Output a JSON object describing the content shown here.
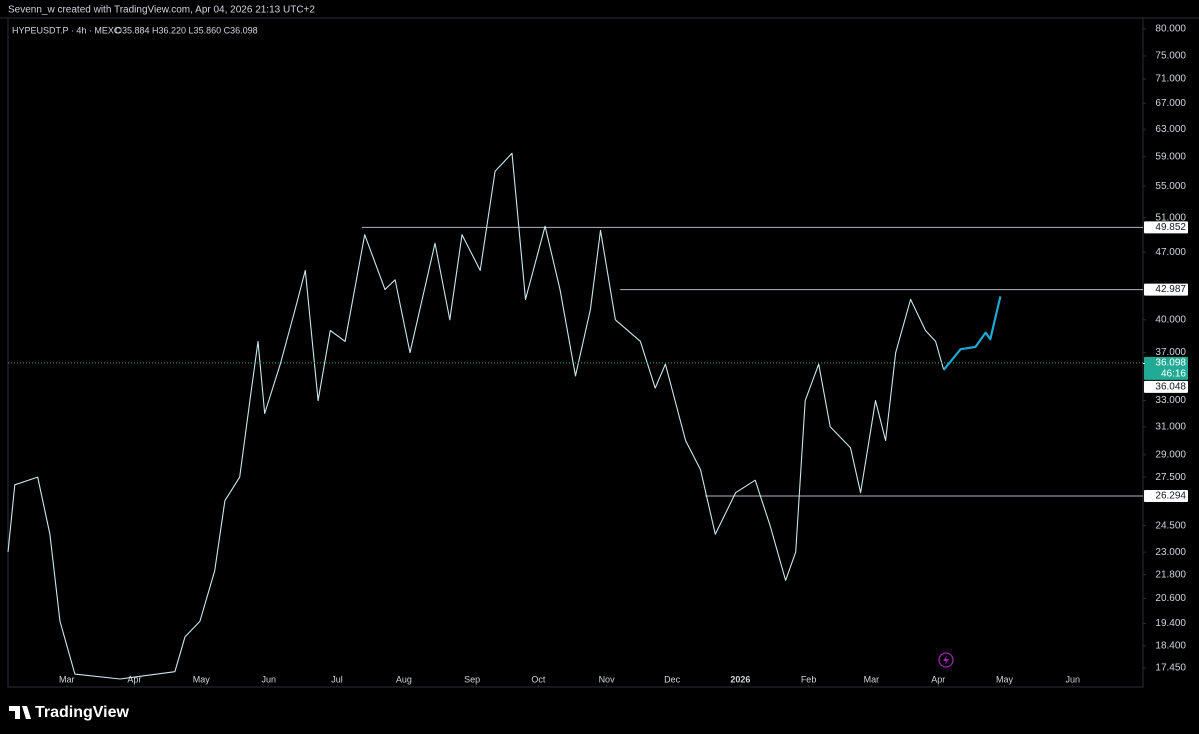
{
  "header": "Sevenn_w created with TradingView.com, Apr 04, 2026 21:13 UTC+2",
  "footer": "TradingView",
  "chart_data": {
    "type": "line",
    "title": "HYPEUSDT.P · 4h · MEXC",
    "subtitle": "O35.884 H36.220 L35.860 C36.098",
    "log_scale": true,
    "grid": false,
    "xlim": [
      -0.87,
      15.93
    ],
    "xticks": [
      {
        "value": 0,
        "label": "Mar"
      },
      {
        "value": 1,
        "label": "Apr"
      },
      {
        "value": 1.99,
        "label": "May"
      },
      {
        "value": 2.99,
        "label": "Jun"
      },
      {
        "value": 4,
        "label": "Jul"
      },
      {
        "value": 4.99,
        "label": "Aug"
      },
      {
        "value": 6,
        "label": "Sep"
      },
      {
        "value": 6.98,
        "label": "Oct"
      },
      {
        "value": 7.99,
        "label": "Nov"
      },
      {
        "value": 8.96,
        "label": "Dec"
      },
      {
        "value": 9.97,
        "label": "2026"
      },
      {
        "value": 10.98,
        "label": "Feb"
      },
      {
        "value": 11.91,
        "label": "Mar"
      },
      {
        "value": 12.9,
        "label": "Apr"
      },
      {
        "value": 13.88,
        "label": "May"
      },
      {
        "value": 14.89,
        "label": "Jun"
      }
    ],
    "ylim": [
      16.68,
      82.1
    ],
    "yticks": [
      {
        "value": 80,
        "label": "80.000"
      },
      {
        "value": 75,
        "label": "75.000"
      },
      {
        "value": 71,
        "label": "71.000"
      },
      {
        "value": 67,
        "label": "67.000"
      },
      {
        "value": 63,
        "label": "63.000"
      },
      {
        "value": 59,
        "label": "59.000"
      },
      {
        "value": 55,
        "label": "55.000"
      },
      {
        "value": 51,
        "label": "51.000"
      },
      {
        "value": 47,
        "label": "47.000"
      },
      {
        "value": 40,
        "label": "40.000"
      },
      {
        "value": 37,
        "label": "37.000"
      },
      {
        "value": 33,
        "label": "33.000"
      },
      {
        "value": 31,
        "label": "31.000"
      },
      {
        "value": 29,
        "label": "29.000"
      },
      {
        "value": 27.5,
        "label": "27.500"
      },
      {
        "value": 24.5,
        "label": "24.500"
      },
      {
        "value": 23,
        "label": "23.000"
      },
      {
        "value": 21.8,
        "label": "21.800"
      },
      {
        "value": 20.6,
        "label": "20.600"
      },
      {
        "value": 19.4,
        "label": "19.400"
      },
      {
        "value": 18.4,
        "label": "18.400"
      },
      {
        "value": 17.45,
        "label": "17.450"
      }
    ],
    "series": [
      {
        "color": "#c9e6ee",
        "x": [
          -0.87,
          -0.77,
          -0.43,
          -0.25,
          -0.1,
          0.12,
          0.79,
          1.6,
          1.75,
          1.97,
          2.19,
          2.34,
          2.56,
          2.71,
          2.83,
          2.93,
          3.16,
          3.38,
          3.53,
          3.72,
          3.9,
          4.12,
          4.41,
          4.71,
          4.86,
          5.08,
          5.45,
          5.67,
          5.85,
          6.12,
          6.34,
          6.59,
          6.79,
          7.08,
          7.3,
          7.53,
          7.75,
          7.9,
          8.12,
          8.49,
          8.71,
          8.86,
          9.16,
          9.38,
          9.6,
          9.9,
          10.19,
          10.41,
          10.64,
          10.79,
          10.93,
          11.13,
          11.3,
          11.6,
          11.75,
          11.97,
          12.12,
          12.27,
          12.49,
          12.71,
          12.86,
          12.98
        ],
        "values": [
          23,
          27,
          27.5,
          24,
          19.5,
          17.2,
          17.0,
          17.3,
          18.8,
          19.5,
          22,
          26,
          27.5,
          33,
          38,
          32,
          36,
          41,
          45,
          33,
          39,
          38,
          49,
          43,
          44,
          37,
          48,
          40,
          49,
          45,
          57,
          59.5,
          42,
          50,
          43,
          35,
          41,
          49.5,
          40,
          38,
          34,
          36,
          30,
          28,
          24,
          26.5,
          27.3,
          24.5,
          21.5,
          23,
          33,
          36,
          31,
          29.5,
          26.5,
          33,
          30,
          37,
          42,
          39,
          38,
          35.5
        ]
      },
      {
        "color": "#1fa8d6",
        "x": [
          12.98,
          13.23,
          13.45,
          13.6,
          13.67,
          13.82
        ],
        "values": [
          35.5,
          37.3,
          37.5,
          38.8,
          38.2,
          42.3
        ]
      }
    ],
    "levels": [
      {
        "value": 49.852,
        "start": 4.37
      },
      {
        "value": 42.987,
        "start": 8.19
      },
      {
        "value": 26.294,
        "start": 9.45
      }
    ],
    "last_price": {
      "value": 36.098,
      "countdown": "46:16",
      "color": "#22ab94"
    },
    "other_price": 36.048
  }
}
